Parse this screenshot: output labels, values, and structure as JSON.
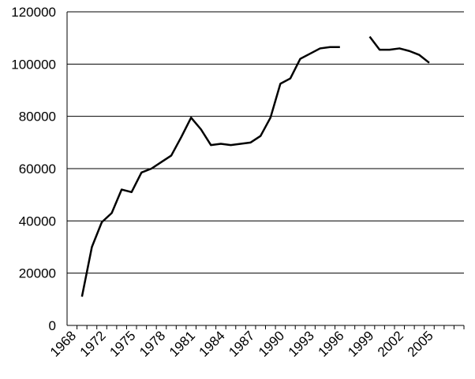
{
  "chart_data": {
    "type": "line",
    "categories": [
      "1968",
      null,
      null,
      "1972",
      null,
      null,
      "1975",
      null,
      null,
      "1978",
      null,
      null,
      "1981",
      null,
      null,
      "1984",
      null,
      null,
      "1987",
      null,
      null,
      "1990",
      null,
      null,
      "1993",
      null,
      null,
      "1996",
      null,
      null,
      "1999",
      null,
      null,
      "2002",
      null,
      null,
      "2005",
      null,
      null,
      null
    ],
    "values": [
      null,
      11000,
      30000,
      39500,
      43000,
      52000,
      51000,
      58500,
      60000,
      62500,
      65000,
      72000,
      79500,
      75000,
      69000,
      69500,
      69000,
      69500,
      70000,
      72500,
      79500,
      92500,
      94500,
      102000,
      104000,
      106000,
      106500,
      106500,
      null,
      null,
      110500,
      105500,
      105500,
      106000,
      105000,
      103500,
      100500,
      null,
      null,
      null
    ],
    "color": "#000000",
    "ylim": [
      0,
      120000
    ],
    "yticks": [
      0,
      20000,
      40000,
      60000,
      80000,
      100000,
      120000
    ],
    "grid": true
  }
}
